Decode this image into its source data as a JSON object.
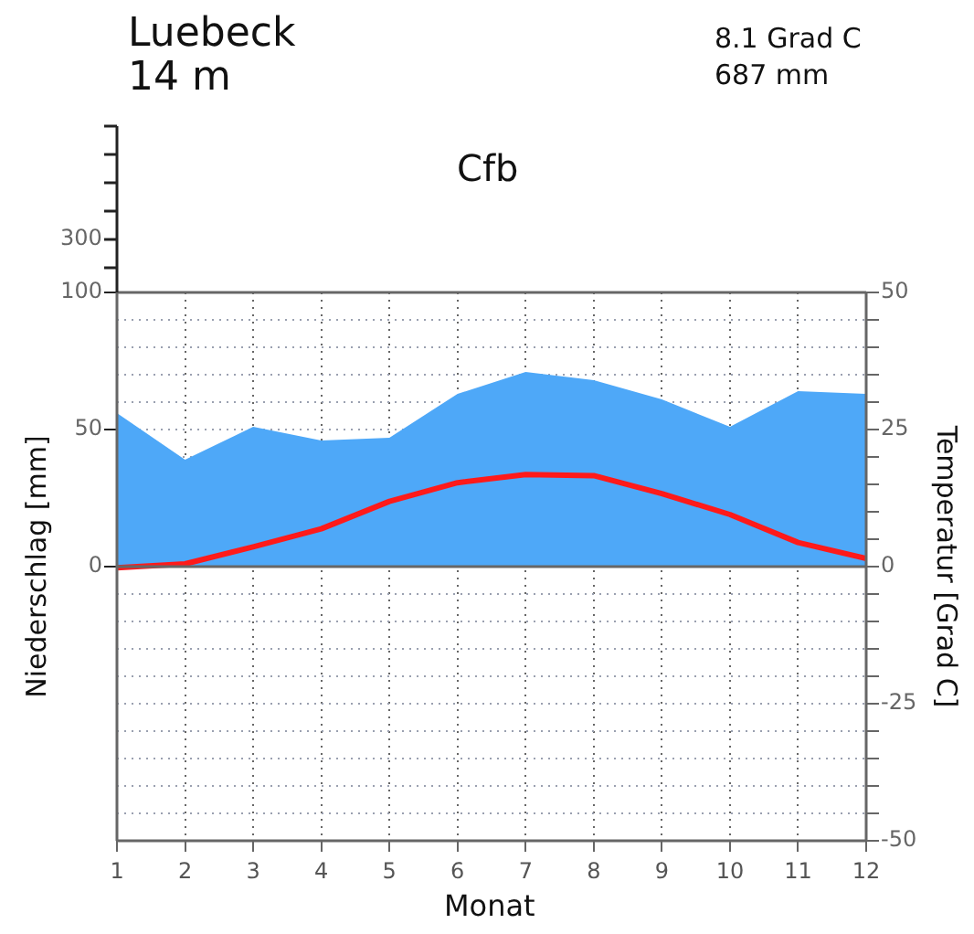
{
  "chart_data": {
    "type": "area",
    "title": "Luebeck",
    "subtitle": "14 m",
    "xlabel": "Monat",
    "ylabel": "Niederschlag [mm]",
    "y2label": "Temperatur [Grad C]",
    "annotations": [
      "8.1 Grad C",
      "687 mm",
      "Cfb",
      "300"
    ],
    "x": [
      1,
      2,
      3,
      4,
      5,
      6,
      7,
      8,
      9,
      10,
      11,
      12
    ],
    "xlim": [
      1,
      12
    ],
    "xticks": [
      1,
      2,
      3,
      4,
      5,
      6,
      7,
      8,
      9,
      10,
      11,
      12
    ],
    "ylim": [
      -100,
      100
    ],
    "yticks": [
      0,
      50,
      100
    ],
    "y2lim": [
      -50,
      50
    ],
    "y2ticks": [
      50,
      {
        "value": 45,
        "label": null
      },
      {
        "value": 40,
        "label": null
      },
      {
        "value": 35,
        "label": null
      },
      {
        "value": 30,
        "label": null
      },
      25,
      {
        "value": 20,
        "label": null
      },
      {
        "value": 15,
        "label": null
      },
      {
        "value": 10,
        "label": null
      },
      {
        "value": 5,
        "label": null
      },
      0,
      {
        "value": -5,
        "label": null
      },
      {
        "value": -10,
        "label": null
      },
      {
        "value": -15,
        "label": null
      },
      {
        "value": -20,
        "label": null
      },
      -25,
      {
        "value": -30,
        "label": null
      },
      {
        "value": -35,
        "label": null
      },
      {
        "value": -40,
        "label": null
      },
      {
        "value": -45,
        "label": null
      },
      -50
    ],
    "grid": true,
    "legend": false,
    "series": [
      {
        "color": "#4ea8f8",
        "values": [
          56,
          39,
          51,
          46,
          47,
          63,
          71,
          68,
          61,
          51,
          64,
          63
        ]
      },
      {
        "type": "line",
        "axis": "y2",
        "color": "#ff1a1a",
        "values": [
          -0.2,
          0.5,
          3.6,
          6.9,
          11.9,
          15.3,
          16.8,
          16.6,
          13.3,
          9.5,
          4.4,
          1.5
        ]
      }
    ]
  }
}
